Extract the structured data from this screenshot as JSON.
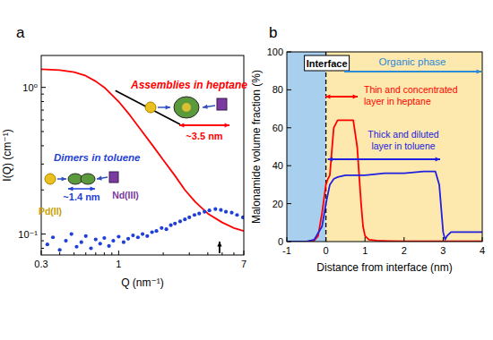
{
  "chart_data": [
    {
      "type": "line",
      "panel_label": "a",
      "x_label": "Q (nm⁻¹)",
      "y_label": "I(Q) (cm⁻¹)",
      "log": true,
      "xlim": [
        0.3,
        7
      ],
      "ylim": [
        0.072,
        1.65
      ],
      "xticks": [
        0.3,
        1,
        7
      ],
      "yticks": [
        {
          "value": 0.1,
          "label": "10⁻¹"
        },
        {
          "value": 1,
          "label": "10⁰"
        }
      ],
      "series": [
        {
          "name": "Assemblies in heptane",
          "color": "#ff0000",
          "type": "line",
          "x": [
            0.3,
            0.4,
            0.5,
            0.6,
            0.7,
            0.8,
            1.0,
            1.2,
            1.4,
            1.7,
            2.0,
            2.4,
            2.8,
            3.3,
            4,
            5,
            6,
            7
          ],
          "values": [
            1.33,
            1.31,
            1.27,
            1.2,
            1.1,
            1.0,
            0.8,
            0.64,
            0.52,
            0.4,
            0.32,
            0.25,
            0.2,
            0.165,
            0.138,
            0.12,
            0.11,
            0.105
          ]
        },
        {
          "name": "Dimers in toluene",
          "color": "#1f3fd6",
          "type": "scatter",
          "marker": "circle",
          "x": [
            0.33,
            0.36,
            0.4,
            0.44,
            0.48,
            0.52,
            0.56,
            0.6,
            0.65,
            0.7,
            0.75,
            0.8,
            0.86,
            0.92,
            1.0,
            1.08,
            1.16,
            1.25,
            1.35,
            1.45,
            1.56,
            1.68,
            1.8,
            1.95,
            2.1,
            2.25,
            2.4,
            2.6,
            2.8,
            3.0,
            3.25,
            3.5,
            3.8,
            4.1,
            4.5,
            4.9,
            5.3,
            5.8,
            6.3,
            6.9
          ],
          "values": [
            0.085,
            0.095,
            0.078,
            0.09,
            0.1,
            0.082,
            0.088,
            0.097,
            0.08,
            0.092,
            0.086,
            0.094,
            0.083,
            0.09,
            0.096,
            0.088,
            0.093,
            0.098,
            0.095,
            0.1,
            0.097,
            0.103,
            0.105,
            0.11,
            0.108,
            0.115,
            0.118,
            0.122,
            0.126,
            0.13,
            0.135,
            0.138,
            0.142,
            0.145,
            0.148,
            0.146,
            0.142,
            0.14,
            0.135,
            0.13
          ]
        }
      ],
      "guide": {
        "color": "#000000",
        "x": [
          0.95,
          2.6
        ],
        "values": [
          0.95,
          0.56
        ]
      },
      "peak_arrow": 4.8,
      "annotations": {
        "size_heptane": "~3.5 nm",
        "size_toluene": "~1.4 nm",
        "pd": "Pd(II)",
        "nd": "Nd(III)"
      }
    },
    {
      "type": "line",
      "panel_label": "b",
      "x_label": "Distance from interface (nm)",
      "y_label": "Malonamide volume fraction (%)",
      "xlim": [
        -1,
        4
      ],
      "ylim": [
        0,
        100
      ],
      "xticks": [
        -1,
        0,
        1,
        2,
        3,
        4
      ],
      "yticks": [
        0,
        20,
        40,
        60,
        80,
        100
      ],
      "interface_x": 0,
      "series": [
        {
          "name": "heptane",
          "color": "#ff0000",
          "x": [
            -1,
            -0.5,
            -0.3,
            -0.2,
            -0.1,
            0,
            0.05,
            0.1,
            0.2,
            0.3,
            0.5,
            0.7,
            0.8,
            0.9,
            0.95,
            1.0,
            1.1,
            1.3,
            1.6,
            2,
            3,
            4
          ],
          "values": [
            0,
            0,
            0.5,
            3,
            15,
            30,
            33,
            35,
            60,
            64,
            64,
            64,
            50,
            20,
            8,
            3,
            1,
            0.5,
            0.3,
            0.2,
            0.2,
            0.2
          ]
        },
        {
          "name": "toluene",
          "color": "#2020e0",
          "x": [
            -1,
            -0.5,
            -0.3,
            -0.1,
            0,
            0.1,
            0.2,
            0.3,
            0.5,
            1,
            1.5,
            2,
            2.5,
            2.8,
            2.9,
            3.0,
            3.05,
            3.1,
            3.2,
            3.5,
            4
          ],
          "values": [
            0,
            0,
            1,
            8,
            20,
            30,
            33,
            34,
            35,
            35,
            36,
            36,
            37,
            37,
            30,
            5,
            1,
            3,
            5,
            5,
            5
          ]
        }
      ],
      "annotations": {
        "interface": "Interface",
        "organic_phase": "Organic phase",
        "heptane_layer": [
          "Thin and concentrated",
          "layer in heptane"
        ],
        "toluene_layer": [
          "Thick and diluted",
          "layer in toluene"
        ]
      }
    }
  ]
}
